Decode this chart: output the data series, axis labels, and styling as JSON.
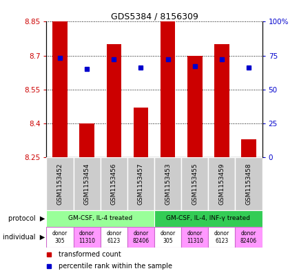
{
  "title": "GDS5384 / 8156309",
  "samples": [
    "GSM1153452",
    "GSM1153454",
    "GSM1153456",
    "GSM1153457",
    "GSM1153453",
    "GSM1153455",
    "GSM1153459",
    "GSM1153458"
  ],
  "transformed_counts": [
    8.85,
    8.4,
    8.75,
    8.47,
    8.85,
    8.7,
    8.75,
    8.33
  ],
  "percentile_ranks": [
    73,
    65,
    72,
    66,
    72,
    67,
    72,
    66
  ],
  "ylim": [
    8.25,
    8.85
  ],
  "yticks": [
    8.25,
    8.4,
    8.55,
    8.7,
    8.85
  ],
  "ytick_labels": [
    "8.25",
    "8.4",
    "8.55",
    "8.7",
    "8.85"
  ],
  "right_yticks": [
    0,
    25,
    50,
    75,
    100
  ],
  "right_ytick_labels": [
    "0",
    "25",
    "50",
    "75",
    "100%"
  ],
  "bar_color": "#cc0000",
  "dot_color": "#0000cc",
  "bar_bottom": 8.25,
  "protocol_groups": [
    {
      "label": "GM-CSF, IL-4 treated",
      "start": 0,
      "end": 4,
      "color": "#99ff99"
    },
    {
      "label": "GM-CSF, IL-4, INF-γ treated",
      "start": 4,
      "end": 8,
      "color": "#33cc55"
    }
  ],
  "individuals": [
    {
      "label": "donor\n305",
      "idx": 0,
      "color": "#ffffff"
    },
    {
      "label": "donor\n11310",
      "idx": 1,
      "color": "#ff99ff"
    },
    {
      "label": "donor\n6123",
      "idx": 2,
      "color": "#ffffff"
    },
    {
      "label": "donor\n82406",
      "idx": 3,
      "color": "#ff99ff"
    },
    {
      "label": "donor\n305",
      "idx": 4,
      "color": "#ffffff"
    },
    {
      "label": "donor\n11310",
      "idx": 5,
      "color": "#ff99ff"
    },
    {
      "label": "donor\n6123",
      "idx": 6,
      "color": "#ffffff"
    },
    {
      "label": "donor\n82406",
      "idx": 7,
      "color": "#ff99ff"
    }
  ],
  "legend_items": [
    {
      "color": "#cc0000",
      "label": "transformed count"
    },
    {
      "color": "#0000cc",
      "label": "percentile rank within the sample"
    }
  ],
  "left_label_color": "#cc0000",
  "right_label_color": "#0000cc",
  "sample_bg": "#cccccc",
  "sample_border": "#ffffff",
  "indiv_border": "#cc66cc"
}
